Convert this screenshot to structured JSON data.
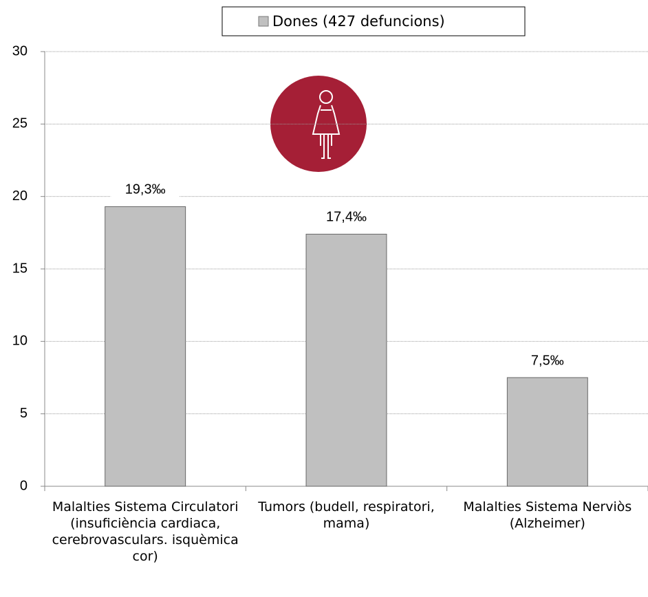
{
  "chart_data": {
    "type": "bar",
    "categories": [
      "Malalties Sistema Circulatori (insuficiència cardiaca, cerebrovasculars. isquèmica cor)",
      "Tumors (budell, respiratori, mama)",
      "Malalties Sistema Nerviòs (Alzheimer)"
    ],
    "series": [
      {
        "name": "Dones (427 defuncions)",
        "color": "#c0c0c0",
        "values": [
          19.3,
          17.4,
          7.5
        ],
        "value_labels": [
          "19,3‰",
          "17,4‰",
          "7,5‰"
        ]
      }
    ],
    "ylim": [
      0,
      30
    ],
    "yticks": [
      0,
      5,
      10,
      15,
      20,
      25,
      30
    ],
    "grid": true
  }
}
